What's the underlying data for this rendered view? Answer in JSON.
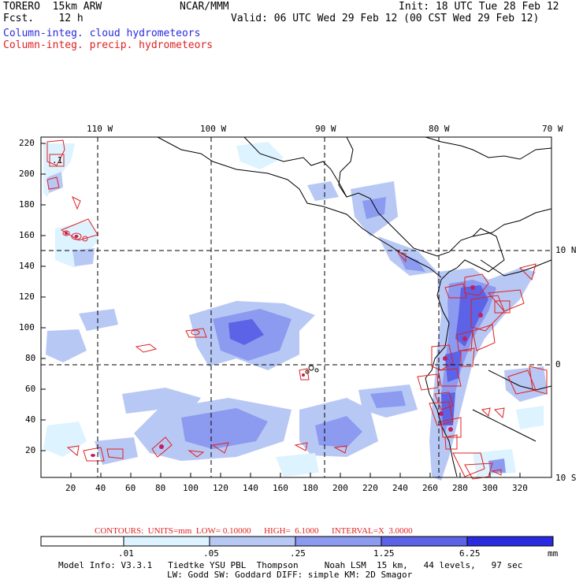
{
  "header": {
    "model": "TORERO  15km ARW",
    "fcst": "Fcst.    12 h",
    "center": "NCAR/MMM",
    "init": "Init: 18 UTC Tue 28 Feb 12",
    "valid": "Valid: 06 UTC Wed 29 Feb 12 (00 CST Wed 29 Feb 12)",
    "legend_cloud": "Column-integ. cloud hydrometeors",
    "legend_precip": "Column-integ. precip. hydrometeors"
  },
  "colors": {
    "cloud_lightest": "#ddf3ff",
    "cloud_light": "#b8c8f4",
    "cloud_mid": "#8c9af0",
    "cloud_dark": "#5c63e6",
    "cloud_darkest": "#2a2ae0",
    "precip_contour": "#e02020",
    "coast": "#000000"
  },
  "map": {
    "lon_labels": [
      "110 W",
      "100 W",
      "90 W",
      "80 W",
      "70 W"
    ],
    "lat_labels": [
      "10 N",
      "0",
      "10 S"
    ],
    "y_ticks": [
      "220",
      "200",
      "180",
      "160",
      "140",
      "120",
      "100",
      "80",
      "60",
      "40",
      "20"
    ],
    "x_ticks": [
      "20",
      "40",
      "60",
      "80",
      "100",
      "120",
      "140",
      "160",
      "180",
      "200",
      "220",
      "240",
      "260",
      "280",
      "300",
      "320"
    ],
    "box_label": ".1"
  },
  "contours_info": "CONTOURS:  UNITS=mm  LOW= 0.10000      HIGH=  6.1000      INTERVAL=X  3.0000",
  "colorbar": {
    "labels": [
      ".01",
      ".05",
      ".25",
      "1.25",
      "6.25"
    ],
    "unit": "mm"
  },
  "footer": {
    "line1": "Model Info: V3.3.1   Tiedtke YSU PBL  Thompson     Noah LSM  15 km,   44 levels,   97 sec",
    "line2": "LW: Godd SW: Goddard DIFF: simple KM: 2D Smagor"
  }
}
